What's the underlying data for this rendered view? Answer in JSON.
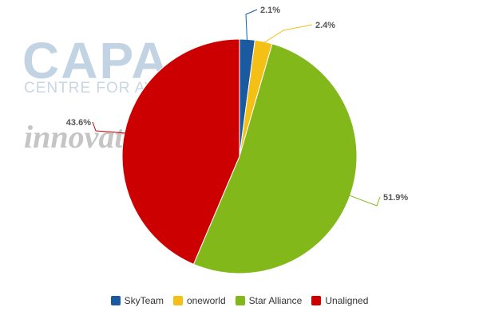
{
  "watermark": {
    "brand": "CAPA",
    "subtitle": "CENTRE FOR AVIATION",
    "tag": "innovata"
  },
  "chart_data": {
    "type": "pie",
    "title": "",
    "start_angle_deg": 0,
    "direction": "clockwise",
    "legend_position": "bottom",
    "slices": [
      {
        "name": "SkyTeam",
        "value": 2.1,
        "label": "2.1%",
        "color": "#1b5aa0"
      },
      {
        "name": "oneworld",
        "value": 2.4,
        "label": "2.4%",
        "color": "#f5c016"
      },
      {
        "name": "Star Alliance",
        "value": 51.9,
        "label": "51.9%",
        "color": "#83b81a"
      },
      {
        "name": "Unaligned",
        "value": 43.6,
        "label": "43.6%",
        "color": "#cc0000"
      }
    ]
  }
}
